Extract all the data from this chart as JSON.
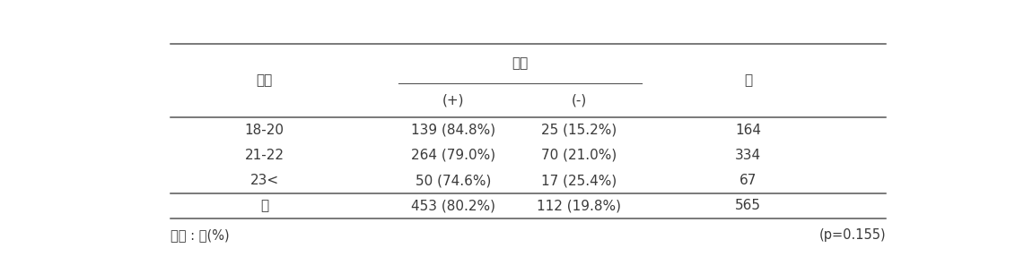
{
  "col_header_row1_left": "나이",
  "col_header_row1_center": "항체",
  "col_header_row1_right": "계",
  "col_header_row2_plus": "(+)",
  "col_header_row2_minus": "(-)",
  "rows": [
    [
      "18-20",
      "139 (84.8%)",
      "25 (15.2%)",
      "164"
    ],
    [
      "21-22",
      "264 (79.0%)",
      "70 (21.0%)",
      "334"
    ],
    [
      "23<",
      "50 (74.6%)",
      "17 (25.4%)",
      "67"
    ]
  ],
  "total_row": [
    "계",
    "453 (80.2%)",
    "112 (19.8%)",
    "565"
  ],
  "footnote_left": "단위 : 명(%)",
  "footnote_right": "(p=0.155)",
  "font_size": 11,
  "font_color": "#3a3a3a",
  "line_color": "#555555"
}
